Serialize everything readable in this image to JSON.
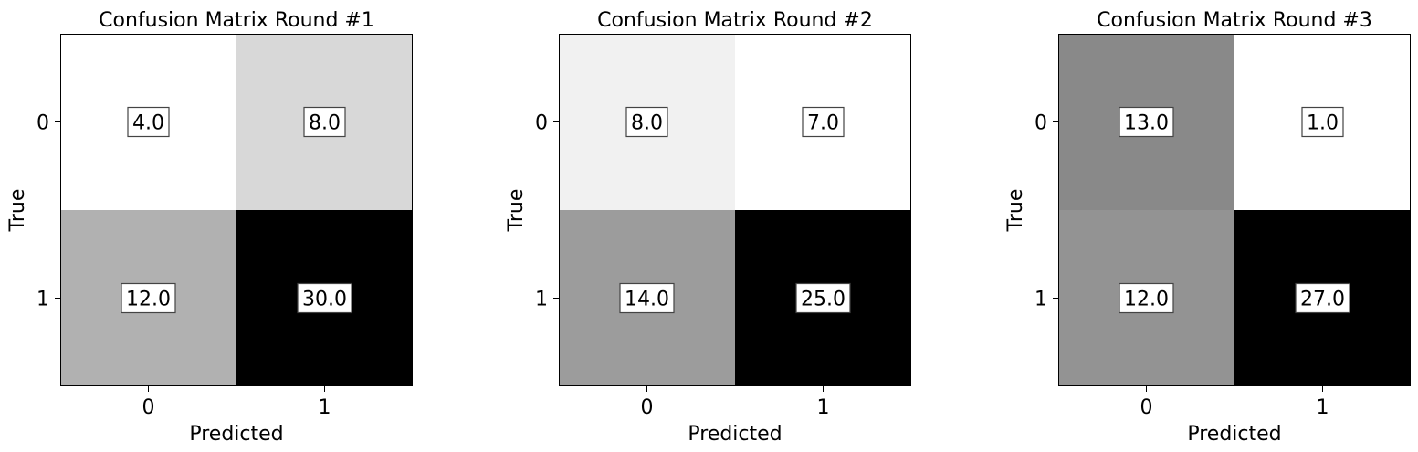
{
  "chart_data": [
    {
      "type": "heatmap",
      "title": "Confusion Matrix Round #1",
      "xlabel": "Predicted",
      "ylabel": "True",
      "x_ticks": [
        "0",
        "1"
      ],
      "y_ticks": [
        "0",
        "1"
      ],
      "values": [
        [
          4.0,
          8.0
        ],
        [
          12.0,
          30.0
        ]
      ],
      "value_labels": [
        [
          "4.0",
          "8.0"
        ],
        [
          "12.0",
          "30.0"
        ]
      ],
      "colormap": "gray_r"
    },
    {
      "type": "heatmap",
      "title": "Confusion Matrix Round #2",
      "xlabel": "Predicted",
      "ylabel": "True",
      "x_ticks": [
        "0",
        "1"
      ],
      "y_ticks": [
        "0",
        "1"
      ],
      "values": [
        [
          8.0,
          7.0
        ],
        [
          14.0,
          25.0
        ]
      ],
      "value_labels": [
        [
          "8.0",
          "7.0"
        ],
        [
          "14.0",
          "25.0"
        ]
      ],
      "colormap": "gray_r"
    },
    {
      "type": "heatmap",
      "title": "Confusion Matrix Round #3",
      "xlabel": "Predicted",
      "ylabel": "True",
      "x_ticks": [
        "0",
        "1"
      ],
      "y_ticks": [
        "0",
        "1"
      ],
      "values": [
        [
          13.0,
          1.0
        ],
        [
          12.0,
          27.0
        ]
      ],
      "value_labels": [
        [
          "13.0",
          "1.0"
        ],
        [
          "12.0",
          "27.0"
        ]
      ],
      "colormap": "gray_r"
    }
  ]
}
